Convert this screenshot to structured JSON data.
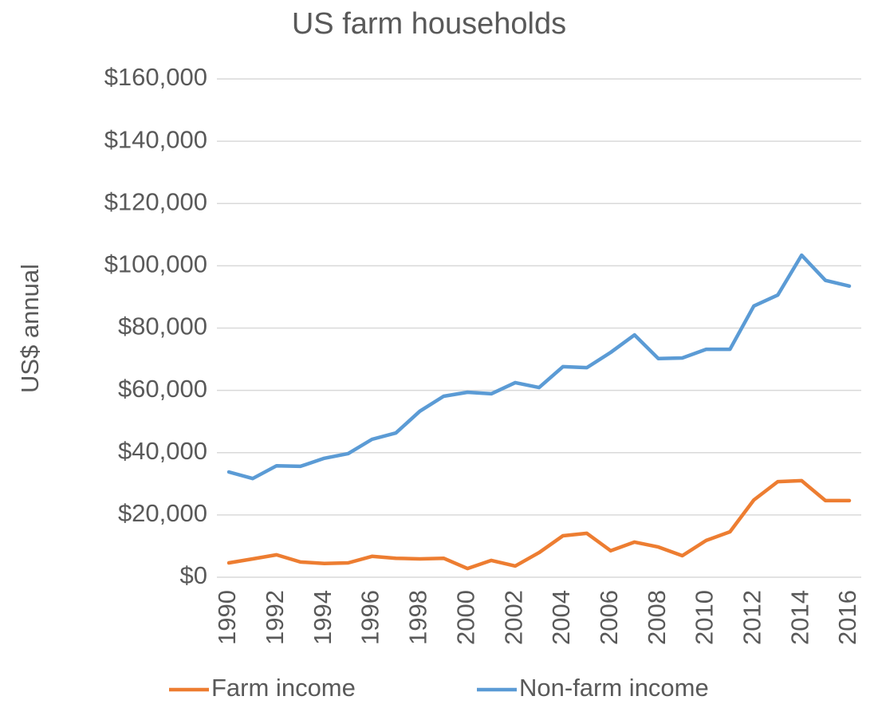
{
  "chart_data": {
    "type": "line",
    "title": "US farm households",
    "y_label": "US$ annual",
    "categories": [
      "1990",
      null,
      "1992",
      null,
      "1994",
      null,
      "1996",
      null,
      "1998",
      null,
      "2000",
      null,
      "2002",
      null,
      "2004",
      null,
      "2006",
      null,
      "2008",
      null,
      "2010",
      null,
      "2012",
      null,
      "2014",
      null,
      "2016"
    ],
    "series": [
      {
        "name": "Farm income",
        "color": "#ed7d31",
        "values": [
          4600,
          5900,
          7200,
          4900,
          4400,
          4600,
          6700,
          6100,
          5900,
          6100,
          2800,
          5400,
          3600,
          7900,
          13300,
          14100,
          8500,
          11300,
          9700,
          6900,
          11800,
          14600,
          24800,
          30700,
          31000,
          24600,
          24600
        ]
      },
      {
        "name": "Non-farm income",
        "color": "#5b9bd5",
        "values": [
          33800,
          31700,
          35800,
          35600,
          38200,
          39700,
          44300,
          46300,
          53300,
          58100,
          59400,
          58900,
          62500,
          60900,
          67600,
          67300,
          72200,
          77800,
          70200,
          70400,
          73200,
          73200,
          87100,
          90600,
          103400,
          95300,
          93500
        ]
      }
    ],
    "ylim": [
      0,
      160000
    ],
    "yticks": [
      {
        "value": 0,
        "label": "$0"
      },
      {
        "value": 20000,
        "label": "$20,000"
      },
      {
        "value": 40000,
        "label": "$40,000"
      },
      {
        "value": 60000,
        "label": "$60,000"
      },
      {
        "value": 80000,
        "label": "$80,000"
      },
      {
        "value": 100000,
        "label": "$100,000"
      },
      {
        "value": 120000,
        "label": "$120,000"
      },
      {
        "value": 140000,
        "label": "$140,000"
      },
      {
        "value": 160000,
        "label": "$160,000"
      }
    ],
    "grid": true,
    "legend": "bottom"
  }
}
